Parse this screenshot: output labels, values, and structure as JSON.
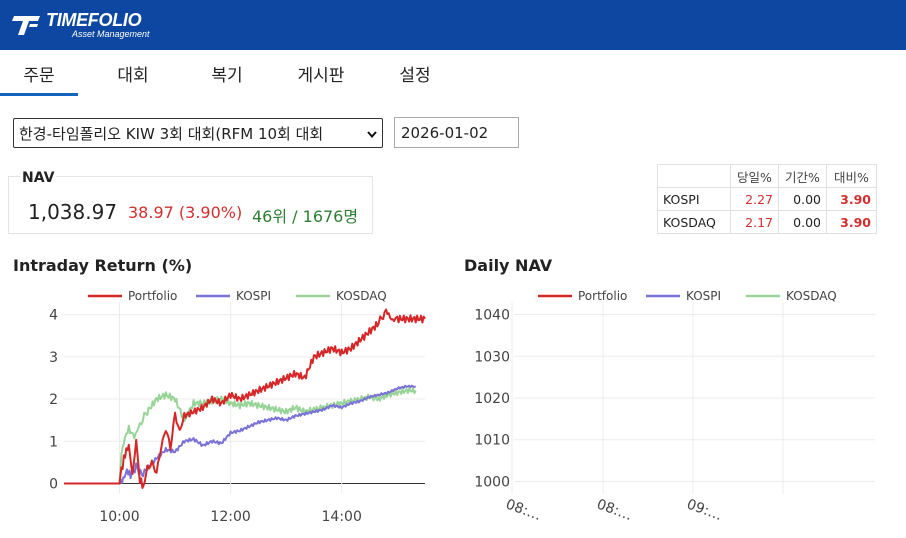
{
  "header": {
    "logo_main": "TIMEFOLIO",
    "logo_sub": "Asset Management"
  },
  "tabs": [
    {
      "label": "주문",
      "active": true
    },
    {
      "label": "대회",
      "active": false
    },
    {
      "label": "복기",
      "active": false
    },
    {
      "label": "게시판",
      "active": false
    },
    {
      "label": "설정",
      "active": false
    }
  ],
  "contest_select": {
    "value": "한경-타임폴리오 KIW 3회 대회(RFM 10회 대회"
  },
  "date_field": {
    "value": "2026-01-02"
  },
  "nav_summary": {
    "label": "NAV",
    "value": "1,038.97",
    "change": "38.97 (3.90%)",
    "rank": "46위 / 1676명"
  },
  "index_table": {
    "headers": [
      "",
      "당일%",
      "기간%",
      "대비%"
    ],
    "rows": [
      {
        "name": "KOSPI",
        "day": "2.27",
        "period": "0.00",
        "diff": "3.90"
      },
      {
        "name": "KOSDAQ",
        "day": "2.17",
        "period": "0.00",
        "diff": "3.90"
      }
    ]
  },
  "colors": {
    "portfolio": "#d62728",
    "kospi": "#7b72d8",
    "kosdaq": "#98d498",
    "header_bg": "#0d47a1",
    "accent": "#1565c0"
  },
  "chart_data": [
    {
      "type": "line",
      "title": "Intraday Return (%)",
      "legend": [
        "Portfolio",
        "KOSPI",
        "KOSDAQ"
      ],
      "legend_position": "top",
      "xlabel": "",
      "ylabel": "",
      "x_ticks": [
        "10:00",
        "12:00",
        "14:00"
      ],
      "y_ticks": [
        "0",
        "1",
        "2",
        "3",
        "4"
      ],
      "xlim_minutes": [
        540,
        930
      ],
      "ylim": [
        -0.25,
        4.3
      ],
      "grid": true,
      "series": [
        {
          "name": "Portfolio",
          "color": "#d62728",
          "x": [
            540,
            570,
            600,
            602,
            606,
            610,
            614,
            618,
            620,
            622,
            626,
            630,
            635,
            640,
            645,
            650,
            655,
            660,
            665,
            670,
            680,
            690,
            700,
            710,
            720,
            730,
            740,
            750,
            760,
            770,
            780,
            790,
            800,
            810,
            820,
            830,
            840,
            850,
            860,
            870,
            880,
            888,
            895,
            900,
            910,
            920,
            930
          ],
          "y": [
            0,
            0,
            0,
            0.3,
            0.7,
            0.9,
            0.2,
            1.0,
            0.6,
            0.1,
            -0.1,
            0.4,
            0.5,
            0.2,
            0.9,
            1.3,
            0.8,
            1.7,
            1.2,
            1.6,
            1.7,
            1.8,
            2.0,
            1.9,
            2.1,
            2.0,
            2.1,
            2.2,
            2.3,
            2.4,
            2.5,
            2.6,
            2.5,
            3.0,
            3.1,
            3.2,
            3.1,
            3.2,
            3.4,
            3.6,
            3.8,
            4.1,
            3.85,
            3.9,
            3.9,
            3.9,
            3.9
          ]
        },
        {
          "name": "KOSPI",
          "color": "#7b72d8",
          "x": [
            540,
            570,
            600,
            604,
            608,
            612,
            618,
            624,
            630,
            640,
            650,
            660,
            670,
            680,
            690,
            700,
            710,
            720,
            730,
            740,
            750,
            760,
            770,
            780,
            790,
            800,
            810,
            820,
            830,
            840,
            850,
            860,
            870,
            880,
            890,
            900,
            910,
            920
          ],
          "y": [
            0,
            0,
            0,
            0.1,
            0.3,
            0.2,
            0.4,
            0.2,
            0.35,
            0.6,
            0.8,
            0.75,
            1.0,
            1.05,
            0.9,
            1.0,
            0.95,
            1.2,
            1.25,
            1.35,
            1.45,
            1.5,
            1.55,
            1.5,
            1.6,
            1.65,
            1.7,
            1.75,
            1.85,
            1.8,
            1.9,
            1.95,
            2.05,
            2.1,
            2.15,
            2.25,
            2.3,
            2.3
          ]
        },
        {
          "name": "KOSDAQ",
          "color": "#98d498",
          "x": [
            540,
            570,
            600,
            602,
            606,
            610,
            616,
            622,
            630,
            640,
            650,
            660,
            670,
            680,
            690,
            700,
            710,
            720,
            730,
            740,
            750,
            760,
            770,
            780,
            790,
            800,
            810,
            820,
            830,
            840,
            850,
            860,
            870,
            880,
            890,
            900,
            910,
            920
          ],
          "y": [
            0,
            0,
            0,
            0.7,
            1.1,
            1.3,
            1.1,
            1.4,
            1.7,
            2.0,
            2.1,
            2.0,
            1.5,
            1.9,
            1.9,
            1.95,
            2.0,
            1.9,
            1.85,
            1.9,
            1.85,
            1.8,
            1.75,
            1.7,
            1.8,
            1.7,
            1.75,
            1.8,
            1.85,
            1.9,
            1.95,
            2.0,
            2.05,
            2.0,
            2.1,
            2.15,
            2.2,
            2.2
          ]
        }
      ]
    },
    {
      "type": "line",
      "title": "Daily NAV",
      "legend": [
        "Portfolio",
        "KOSPI",
        "KOSDAQ"
      ],
      "legend_position": "top",
      "xlabel": "",
      "ylabel": "",
      "x_ticks": [
        "08:…",
        "08:…",
        "09:…"
      ],
      "y_ticks": [
        "1000",
        "1010",
        "1020",
        "1030",
        "1040"
      ],
      "ylim": [
        997,
        1043
      ],
      "grid": true,
      "series": []
    }
  ]
}
